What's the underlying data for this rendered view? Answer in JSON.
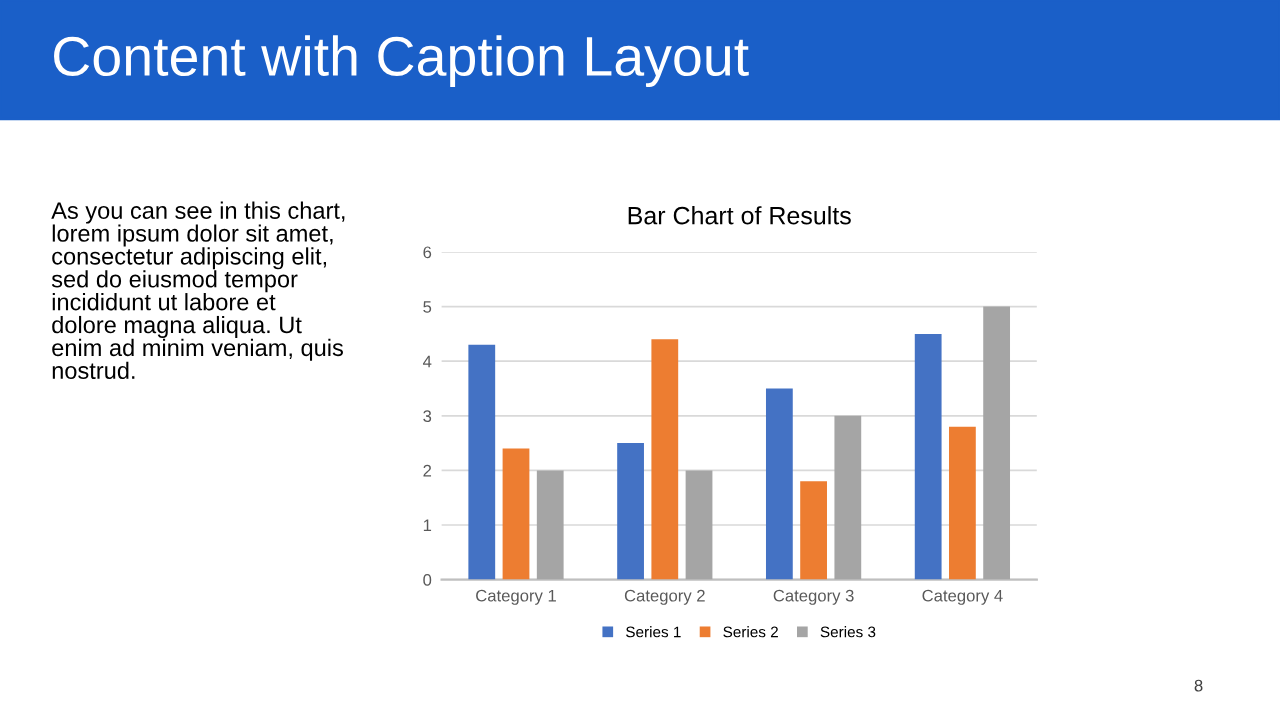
{
  "chart_data": {
    "type": "bar",
    "title": "Bar Chart of Results",
    "categories": [
      "Category 1",
      "Category 2",
      "Category 3",
      "Category 4"
    ],
    "series": [
      {
        "name": "Series 1",
        "color": "#4472c4",
        "values": [
          4.3,
          2.5,
          3.5,
          4.5
        ]
      },
      {
        "name": "Series 2",
        "color": "#ed7d31",
        "values": [
          2.4,
          4.4,
          1.8,
          2.8
        ]
      },
      {
        "name": "Series 3",
        "color": "#a5a5a5",
        "values": [
          2,
          2,
          3,
          5
        ]
      }
    ],
    "ylim": [
      0,
      6
    ],
    "yticks": [
      0,
      1,
      2,
      3,
      4,
      5,
      6
    ],
    "grid": "y",
    "legend": "bottom",
    "annotations": [
      "Content with Caption Layout",
      "As you can see in this chart,\nlorem ipsum dolor sit amet,\nconsectetur adipiscing elit,\nsed do eiusmod tempor\nincididunt ut labore et\ndolore magna aliqua. Ut\nenim ad minim veniam, quis\nnostrud.",
      "8"
    ]
  }
}
